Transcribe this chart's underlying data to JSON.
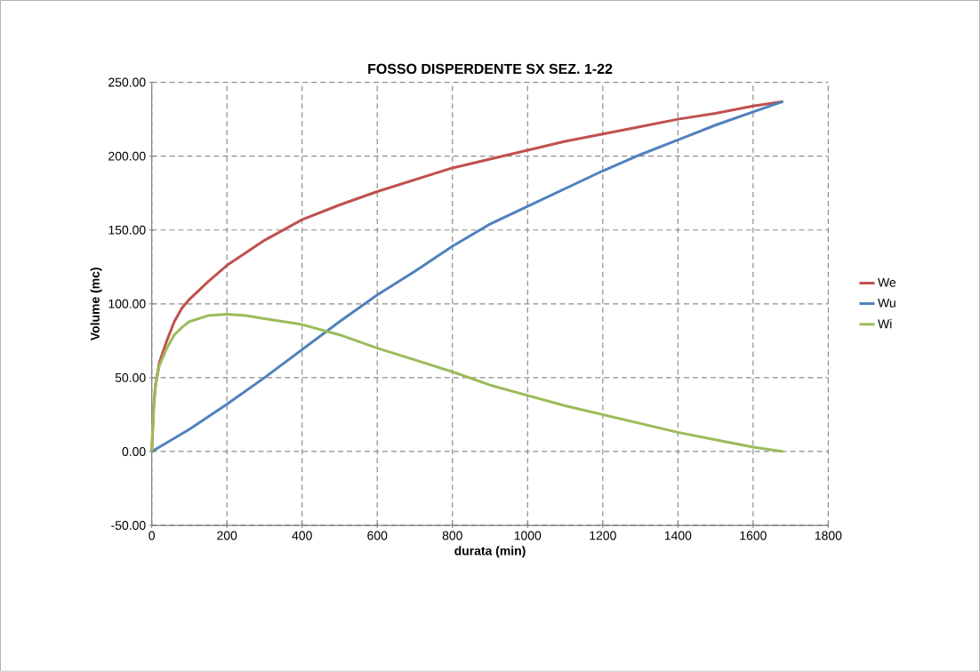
{
  "chart_data": {
    "type": "line",
    "title": "FOSSO DISPERDENTE SX SEZ. 1-22",
    "xlabel": "durata (min)",
    "ylabel": "Volume (mc)",
    "xlim": [
      0,
      1800
    ],
    "xticks": [
      0,
      200,
      400,
      600,
      800,
      1000,
      1200,
      1400,
      1600,
      1800
    ],
    "ylim": [
      -50,
      250
    ],
    "yticks": [
      {
        "value": -50,
        "label": "-50.00"
      },
      {
        "value": 0,
        "label": "0.00"
      },
      {
        "value": 50,
        "label": "50.00"
      },
      {
        "value": 100,
        "label": "100.00"
      },
      {
        "value": 150,
        "label": "150.00"
      },
      {
        "value": 200,
        "label": "200.00"
      },
      {
        "value": 250,
        "label": "250.00"
      }
    ],
    "grid": true,
    "legend": "right",
    "marker": "none",
    "line_style": "solid",
    "series": [
      {
        "name": "We",
        "color": "#c0504d",
        "x": [
          0,
          5,
          10,
          20,
          40,
          60,
          80,
          100,
          150,
          200,
          300,
          400,
          500,
          600,
          700,
          800,
          900,
          1000,
          1100,
          1200,
          1300,
          1400,
          1500,
          1600,
          1680
        ],
        "values": [
          0,
          30,
          45,
          60,
          75,
          88,
          97,
          103,
          115,
          126,
          143,
          157,
          167,
          176,
          184,
          192,
          198,
          204,
          210,
          215,
          220,
          225,
          229,
          234,
          237
        ]
      },
      {
        "name": "Wu",
        "color": "#4f81bd",
        "x": [
          0,
          100,
          200,
          300,
          400,
          500,
          600,
          700,
          800,
          900,
          1000,
          1100,
          1200,
          1300,
          1400,
          1500,
          1600,
          1680
        ],
        "values": [
          0,
          15,
          32,
          50,
          69,
          88,
          106,
          122,
          139,
          154,
          166,
          178,
          190,
          201,
          211,
          221,
          230,
          237
        ]
      },
      {
        "name": "Wi",
        "color": "#9bbb59",
        "x": [
          0,
          5,
          10,
          20,
          40,
          60,
          80,
          100,
          150,
          200,
          250,
          300,
          400,
          500,
          600,
          700,
          800,
          900,
          1000,
          1100,
          1200,
          1300,
          1400,
          1500,
          1600,
          1680
        ],
        "values": [
          0,
          30,
          45,
          58,
          70,
          79,
          84,
          88,
          92,
          93,
          92,
          90,
          86,
          79,
          70,
          62,
          54,
          45,
          38,
          31,
          25,
          19,
          13,
          8,
          3,
          0
        ]
      }
    ]
  }
}
